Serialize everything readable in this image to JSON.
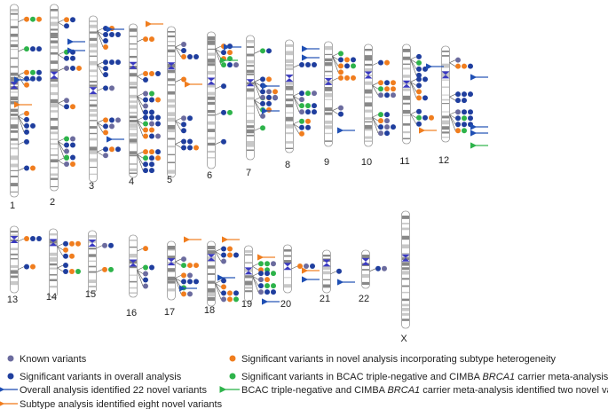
{
  "chromosomes": [
    {
      "label": "1"
    },
    {
      "label": "2"
    },
    {
      "label": "3"
    },
    {
      "label": "4"
    },
    {
      "label": "5"
    },
    {
      "label": "6"
    },
    {
      "label": "7"
    },
    {
      "label": "8"
    },
    {
      "label": "9"
    },
    {
      "label": "10"
    },
    {
      "label": "11"
    },
    {
      "label": "12"
    },
    {
      "label": "13"
    },
    {
      "label": "14"
    },
    {
      "label": "15"
    },
    {
      "label": "16"
    },
    {
      "label": "17"
    },
    {
      "label": "18"
    },
    {
      "label": "19"
    },
    {
      "label": "20"
    },
    {
      "label": "21"
    },
    {
      "label": "22"
    },
    {
      "label": "X"
    }
  ],
  "legend": {
    "known": "Known variants",
    "overall": "Significant variants in overall analysis",
    "overall_novel": "Overall analysis identified 22 novel variants",
    "subtype_novel": "Subtype analysis identified eight novel variants",
    "subtype": "Significant variants in novel analysis incorporating subtype heterogeneity",
    "meta": [
      "Significant variants in BCAC triple-negative and CIMBA ",
      "BRCA1",
      " carrier meta-analysis"
    ],
    "meta_novel": [
      "BCAC triple-negative and CIMBA ",
      "BRCA1",
      " carrier meta-analysis identified two novel variants"
    ]
  }
}
